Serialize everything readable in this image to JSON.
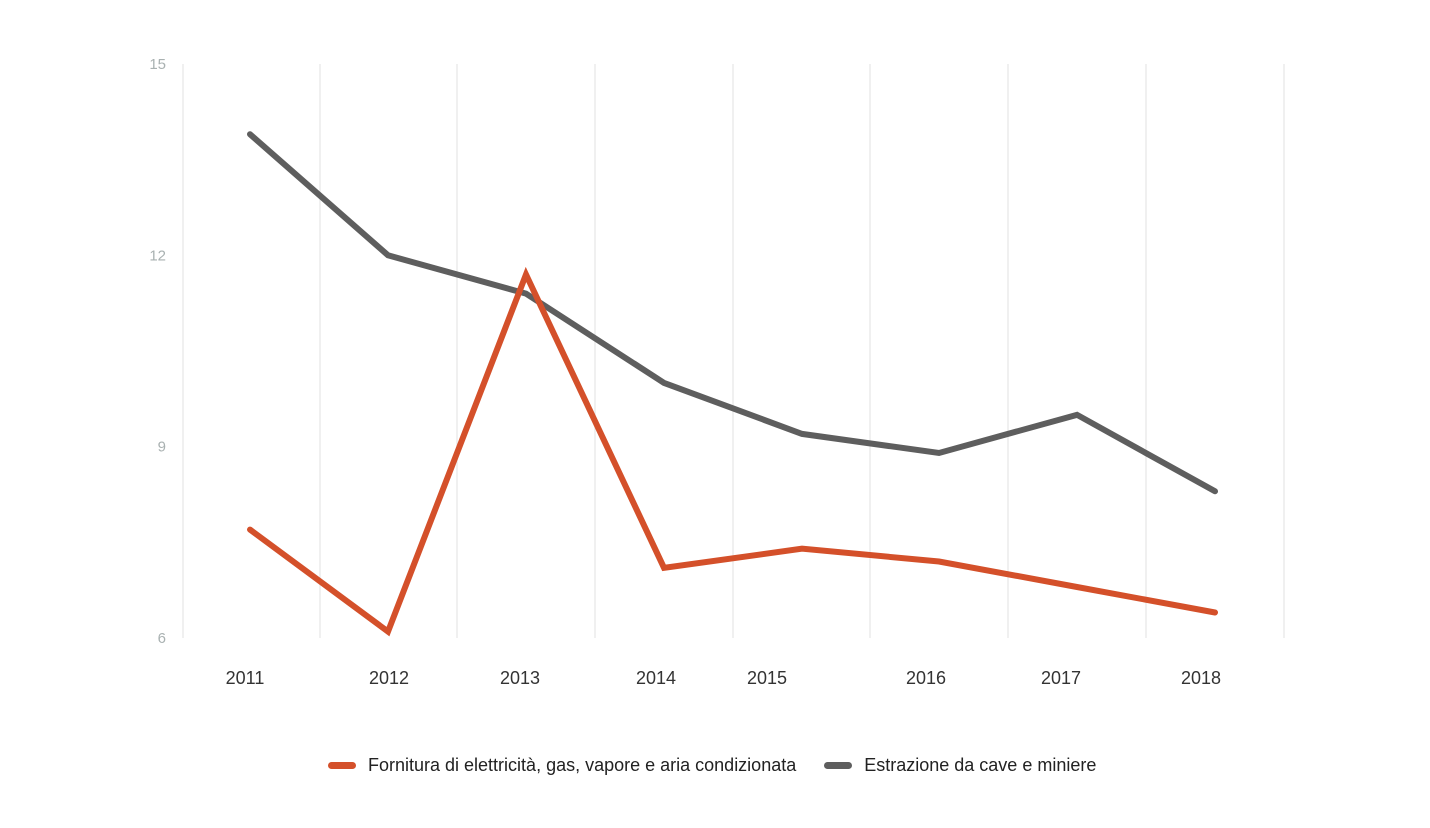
{
  "chart_data": {
    "type": "line",
    "title": "",
    "xlabel": "",
    "ylabel": "",
    "categories": [
      "2011",
      "2012",
      "2013",
      "2014",
      "2015",
      "2016",
      "2017",
      "2018"
    ],
    "y_ticks": [
      "15",
      "12",
      "9",
      "6"
    ],
    "ylim": [
      6,
      15
    ],
    "grid": "vertical",
    "legend_position": "bottom",
    "series": [
      {
        "name": "Fornitura di elettricità, gas, vapore e aria condizionata",
        "color": "#d4502a",
        "values": [
          7.7,
          6.1,
          11.7,
          7.1,
          7.4,
          7.2,
          6.8,
          6.4
        ]
      },
      {
        "name": "Estrazione da cave e miniere",
        "color": "#5e5e5e",
        "values": [
          13.9,
          12.0,
          11.4,
          10.0,
          9.2,
          8.9,
          9.5,
          8.3
        ]
      }
    ]
  }
}
